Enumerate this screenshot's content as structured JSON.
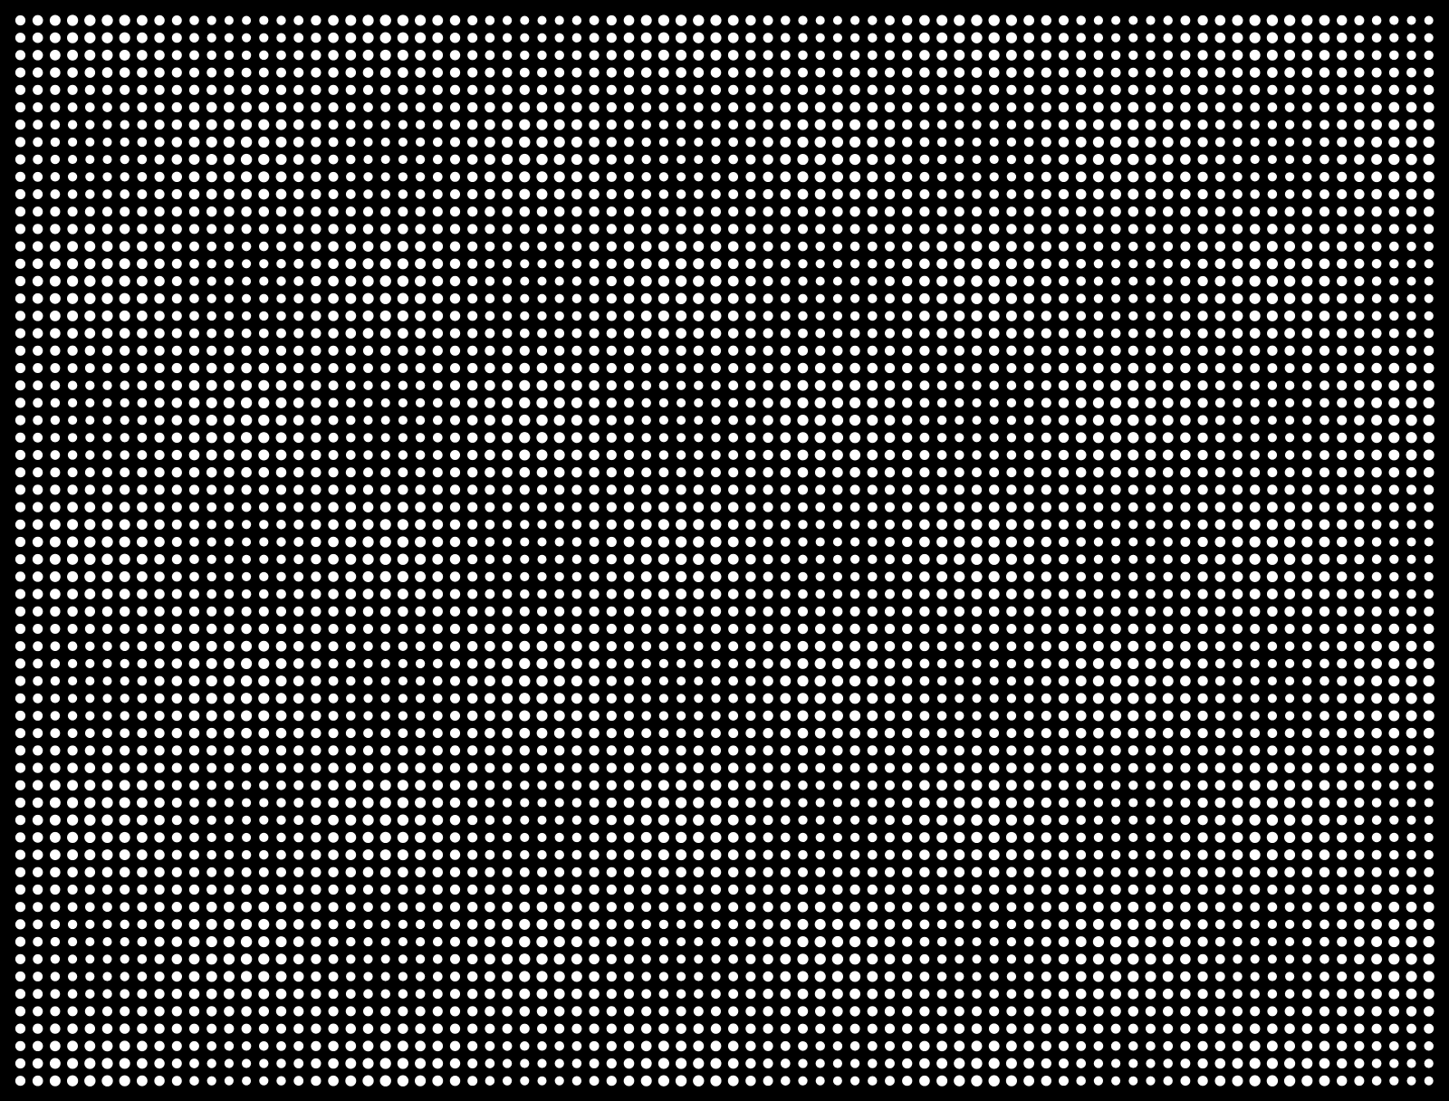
{
  "pattern": {
    "type": "halftone-dot-grid",
    "columns": 82,
    "rows": 62,
    "background_color": "#000000",
    "dot_color": "#ffffff"
  }
}
